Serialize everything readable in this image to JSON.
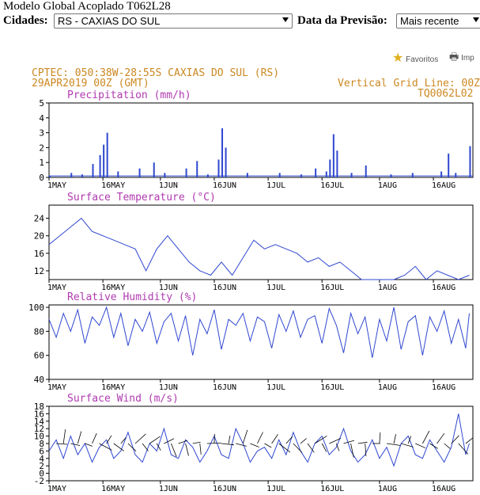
{
  "header": {
    "title": "Modelo Global Acoplado T062L28",
    "cities_label": "Cidades:",
    "city_selected": "RS - CAXIAS DO SUL",
    "date_label": "Data da Previsão:",
    "date_selected": "Mais recente"
  },
  "actions": {
    "favorites_label": "Favoritos",
    "print_label": "Imp"
  },
  "meteogram": {
    "org_line": "CPTEC:  050:38W-28:55S  CAXIAS DO SUL (RS)",
    "date_line": "29APR2019 00Z (GMT)",
    "grid_line": "Vertical Grid Line: 00Z",
    "model_code": "TQ0062L02",
    "colors": {
      "header_text": "#cc8822",
      "panel_title": "#b03ab0",
      "series": "#2f47d0"
    }
  },
  "chart_data": [
    {
      "type": "bar",
      "title": "Precipitation (mm/h)",
      "x_ticks": [
        "1MAY",
        "16MAY",
        "1JUN",
        "16JUN",
        "1JUL",
        "16JUL",
        "1AUG",
        "16AUG"
      ],
      "y_ticks": [
        "0",
        "1",
        "2",
        "3",
        "4",
        "5"
      ],
      "ylim": [
        0,
        5
      ],
      "spikes": [
        {
          "day": 0,
          "value": 0.1
        },
        {
          "day": 6,
          "value": 0.3
        },
        {
          "day": 9,
          "value": 0.2
        },
        {
          "day": 12,
          "value": 0.9
        },
        {
          "day": 14,
          "value": 1.5
        },
        {
          "day": 15,
          "value": 2.2
        },
        {
          "day": 16,
          "value": 3.0
        },
        {
          "day": 19,
          "value": 0.4
        },
        {
          "day": 25,
          "value": 0.6
        },
        {
          "day": 29,
          "value": 1.0
        },
        {
          "day": 32,
          "value": 0.3
        },
        {
          "day": 38,
          "value": 0.6
        },
        {
          "day": 41,
          "value": 1.1
        },
        {
          "day": 44,
          "value": 0.2
        },
        {
          "day": 47,
          "value": 1.2
        },
        {
          "day": 48,
          "value": 3.3
        },
        {
          "day": 49,
          "value": 2.0
        },
        {
          "day": 55,
          "value": 0.3
        },
        {
          "day": 64,
          "value": 0.3
        },
        {
          "day": 70,
          "value": 0.2
        },
        {
          "day": 74,
          "value": 0.6
        },
        {
          "day": 77,
          "value": 0.4
        },
        {
          "day": 78,
          "value": 1.2
        },
        {
          "day": 79,
          "value": 2.9
        },
        {
          "day": 80,
          "value": 1.8
        },
        {
          "day": 84,
          "value": 0.3
        },
        {
          "day": 88,
          "value": 0.8
        },
        {
          "day": 95,
          "value": 0.2
        },
        {
          "day": 101,
          "value": 0.3
        },
        {
          "day": 109,
          "value": 0.4
        },
        {
          "day": 111,
          "value": 1.6
        },
        {
          "day": 113,
          "value": 0.3
        },
        {
          "day": 117,
          "value": 2.1
        }
      ]
    },
    {
      "type": "line",
      "title": "Surface Temperature (°C)",
      "x_ticks": [
        "1MAY",
        "16MAY",
        "1JUN",
        "16JUN",
        "1JUL",
        "16JUL",
        "1AUG",
        "16AUG"
      ],
      "y_ticks": [
        "12",
        "16",
        "20",
        "24"
      ],
      "ylim": [
        10,
        27
      ],
      "points": [
        [
          0,
          18
        ],
        [
          3,
          20
        ],
        [
          6,
          22
        ],
        [
          9,
          24
        ],
        [
          12,
          21
        ],
        [
          15,
          20
        ],
        [
          18,
          19
        ],
        [
          21,
          18
        ],
        [
          24,
          17
        ],
        [
          27,
          12
        ],
        [
          30,
          17
        ],
        [
          33,
          20
        ],
        [
          36,
          17
        ],
        [
          39,
          14
        ],
        [
          42,
          12
        ],
        [
          45,
          11
        ],
        [
          48,
          14
        ],
        [
          51,
          11
        ],
        [
          54,
          15
        ],
        [
          57,
          19
        ],
        [
          60,
          17
        ],
        [
          63,
          18
        ],
        [
          66,
          17
        ],
        [
          69,
          16
        ],
        [
          72,
          14
        ],
        [
          75,
          15
        ],
        [
          78,
          13
        ],
        [
          81,
          14
        ],
        [
          84,
          12
        ],
        [
          87,
          10
        ],
        [
          90,
          10
        ],
        [
          93,
          10
        ],
        [
          96,
          10
        ],
        [
          99,
          11
        ],
        [
          102,
          13
        ],
        [
          105,
          10
        ],
        [
          108,
          12
        ],
        [
          111,
          11
        ],
        [
          114,
          10
        ],
        [
          117,
          11
        ]
      ]
    },
    {
      "type": "line",
      "title": "Relative Humidity (%)",
      "x_ticks": [
        "1MAY",
        "16MAY",
        "1JUN",
        "16JUN",
        "1JUL",
        "16JUL",
        "1AUG",
        "16AUG"
      ],
      "y_ticks": [
        "40",
        "60",
        "80",
        "100"
      ],
      "ylim": [
        40,
        102
      ],
      "points": [
        [
          0,
          90
        ],
        [
          2,
          75
        ],
        [
          4,
          95
        ],
        [
          6,
          80
        ],
        [
          8,
          98
        ],
        [
          10,
          70
        ],
        [
          12,
          92
        ],
        [
          14,
          85
        ],
        [
          16,
          100
        ],
        [
          18,
          75
        ],
        [
          20,
          95
        ],
        [
          22,
          68
        ],
        [
          24,
          90
        ],
        [
          26,
          80
        ],
        [
          28,
          96
        ],
        [
          30,
          70
        ],
        [
          32,
          88
        ],
        [
          34,
          95
        ],
        [
          36,
          72
        ],
        [
          38,
          93
        ],
        [
          40,
          60
        ],
        [
          42,
          90
        ],
        [
          44,
          78
        ],
        [
          46,
          98
        ],
        [
          48,
          65
        ],
        [
          50,
          90
        ],
        [
          52,
          85
        ],
        [
          54,
          95
        ],
        [
          56,
          72
        ],
        [
          58,
          92
        ],
        [
          60,
          88
        ],
        [
          62,
          66
        ],
        [
          64,
          94
        ],
        [
          66,
          80
        ],
        [
          68,
          97
        ],
        [
          70,
          75
        ],
        [
          72,
          90
        ],
        [
          74,
          93
        ],
        [
          76,
          70
        ],
        [
          78,
          99
        ],
        [
          80,
          85
        ],
        [
          82,
          62
        ],
        [
          84,
          95
        ],
        [
          86,
          78
        ],
        [
          88,
          92
        ],
        [
          90,
          58
        ],
        [
          92,
          90
        ],
        [
          94,
          72
        ],
        [
          96,
          100
        ],
        [
          98,
          65
        ],
        [
          100,
          88
        ],
        [
          102,
          93
        ],
        [
          104,
          60
        ],
        [
          106,
          92
        ],
        [
          108,
          80
        ],
        [
          110,
          97
        ],
        [
          112,
          70
        ],
        [
          114,
          90
        ],
        [
          116,
          66
        ],
        [
          117,
          95
        ]
      ]
    },
    {
      "type": "line",
      "title": "Surface Wind (m/s)",
      "x_ticks": [
        "1MAY",
        "16MAY",
        "1JUN",
        "16JUN",
        "1JUL",
        "16JUL",
        "1AUG",
        "16AUG"
      ],
      "y_ticks": [
        "-2",
        "0",
        "2",
        "4",
        "6",
        "8",
        "10",
        "12",
        "14",
        "16",
        "18"
      ],
      "ylim": [
        -2,
        18
      ],
      "points": [
        [
          0,
          6
        ],
        [
          2,
          9
        ],
        [
          4,
          4
        ],
        [
          6,
          10
        ],
        [
          8,
          5
        ],
        [
          10,
          8
        ],
        [
          12,
          3
        ],
        [
          14,
          7
        ],
        [
          16,
          9
        ],
        [
          18,
          4
        ],
        [
          20,
          6
        ],
        [
          22,
          11
        ],
        [
          24,
          5
        ],
        [
          26,
          3
        ],
        [
          28,
          8
        ],
        [
          30,
          6
        ],
        [
          32,
          12
        ],
        [
          34,
          5
        ],
        [
          36,
          4
        ],
        [
          38,
          9
        ],
        [
          40,
          7
        ],
        [
          42,
          3
        ],
        [
          44,
          6
        ],
        [
          46,
          10
        ],
        [
          48,
          5
        ],
        [
          50,
          4
        ],
        [
          52,
          12
        ],
        [
          54,
          8
        ],
        [
          56,
          3
        ],
        [
          58,
          6
        ],
        [
          60,
          7
        ],
        [
          62,
          4
        ],
        [
          64,
          9
        ],
        [
          66,
          5
        ],
        [
          68,
          11
        ],
        [
          70,
          6
        ],
        [
          72,
          3
        ],
        [
          74,
          8
        ],
        [
          76,
          10
        ],
        [
          78,
          5
        ],
        [
          80,
          7
        ],
        [
          82,
          12
        ],
        [
          84,
          6
        ],
        [
          86,
          3
        ],
        [
          88,
          5
        ],
        [
          90,
          9
        ],
        [
          92,
          4
        ],
        [
          94,
          7
        ],
        [
          96,
          2
        ],
        [
          98,
          8
        ],
        [
          100,
          10
        ],
        [
          102,
          5
        ],
        [
          104,
          4
        ],
        [
          106,
          9
        ],
        [
          108,
          6
        ],
        [
          110,
          3
        ],
        [
          112,
          7
        ],
        [
          114,
          16
        ],
        [
          116,
          5
        ],
        [
          117,
          8
        ]
      ]
    }
  ]
}
